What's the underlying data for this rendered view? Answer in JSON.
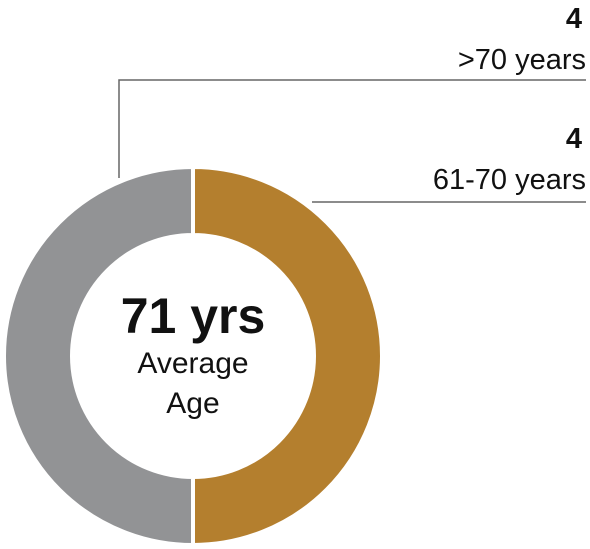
{
  "chart_data": {
    "type": "pie",
    "style": "donut",
    "slices": [
      {
        "label": "61-70 years",
        "value": 4,
        "color": "#b47f2e"
      },
      {
        "label": ">70 years",
        "value": 4,
        "color": "#929395"
      }
    ],
    "center": {
      "value": "71 yrs",
      "label_line1": "Average",
      "label_line2": "Age"
    },
    "callouts": [
      {
        "count": "4",
        "label": ">70 years"
      },
      {
        "count": "4",
        "label": "61-70 years"
      }
    ],
    "legend": "callouts-right"
  }
}
